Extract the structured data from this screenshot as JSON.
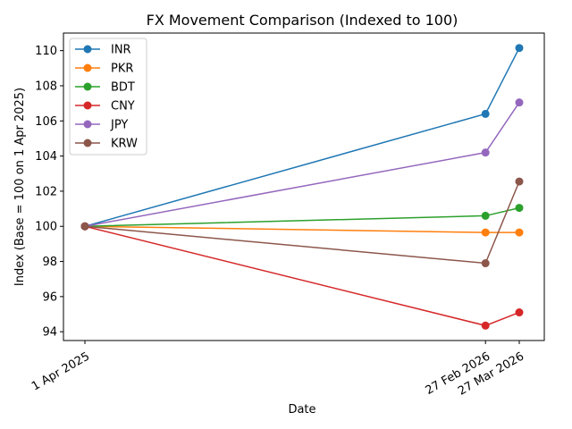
{
  "chart_data": {
    "type": "line",
    "title": "FX Movement Comparison (Indexed to 100)",
    "xlabel": "Date",
    "ylabel": "Index (Base = 100 on 1 Apr 2025)",
    "categories": [
      "1 Apr 2025",
      "27 Feb 2026",
      "27 Mar 2026"
    ],
    "x_days": [
      0,
      332,
      360
    ],
    "ylim": [
      93.5,
      111
    ],
    "yticks": [
      94,
      96,
      98,
      100,
      102,
      104,
      106,
      108,
      110
    ],
    "grid": false,
    "legend_position": "upper left",
    "series": [
      {
        "name": "INR",
        "color": "#1f77b4",
        "values": [
          100,
          106.4,
          110.15
        ]
      },
      {
        "name": "PKR",
        "color": "#ff7f0e",
        "values": [
          100,
          99.65,
          99.65
        ]
      },
      {
        "name": "BDT",
        "color": "#2ca02c",
        "values": [
          100,
          100.6,
          101.05
        ]
      },
      {
        "name": "CNY",
        "color": "#d62728",
        "values": [
          100,
          94.35,
          95.1
        ]
      },
      {
        "name": "JPY",
        "color": "#9467bd",
        "values": [
          100,
          104.2,
          107.05
        ]
      },
      {
        "name": "KRW",
        "color": "#8c564b",
        "values": [
          100,
          97.9,
          102.55
        ]
      }
    ]
  }
}
